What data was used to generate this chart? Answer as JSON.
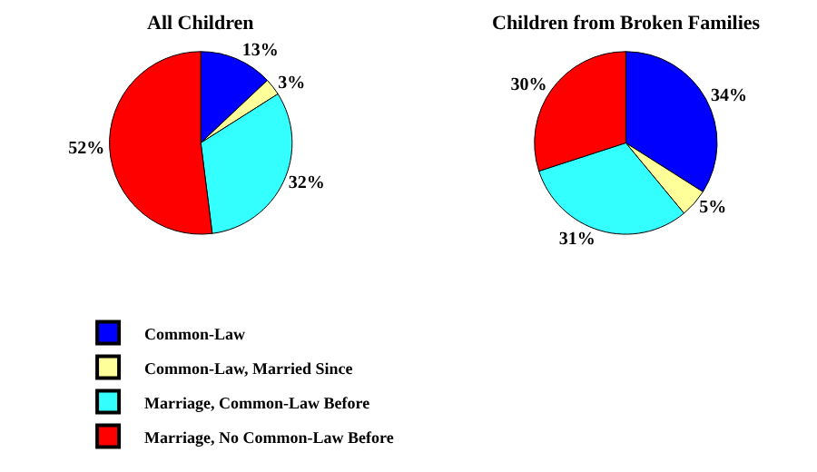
{
  "chart_data": [
    {
      "type": "pie",
      "title": "All Children",
      "categories": [
        "Common-Law",
        "Common-Law, Married Since",
        "Marriage, Common-Law Before",
        "Marriage, No Common-Law Before"
      ],
      "values": [
        13,
        3,
        32,
        52
      ],
      "value_labels": [
        "13%",
        "3%",
        "32%",
        "52%"
      ],
      "colors": [
        "#0000ff",
        "#ffff99",
        "#33ffff",
        "#ff0000"
      ],
      "legend": "bottom"
    },
    {
      "type": "pie",
      "title": "Children from Broken Families",
      "categories": [
        null,
        null,
        null,
        null
      ],
      "values": [
        34,
        5,
        31,
        30
      ],
      "value_labels": [
        "34%",
        "5%",
        "31%",
        "30%"
      ],
      "colors": [
        "#0000ff",
        "#ffff99",
        "#33ffff",
        "#ff0000"
      ]
    }
  ]
}
